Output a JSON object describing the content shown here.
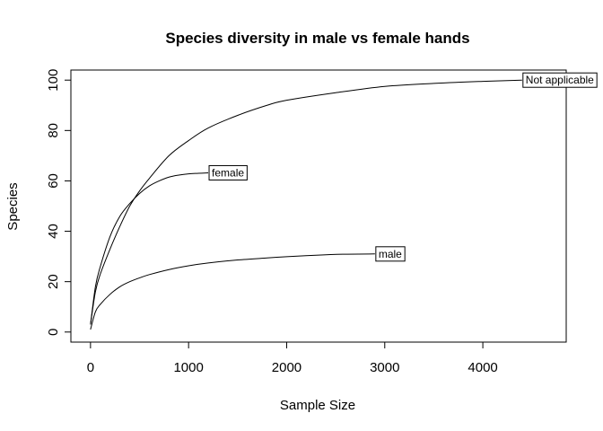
{
  "chart_data": {
    "type": "line",
    "title": "Species diversity in male vs female hands",
    "xlabel": "Sample Size",
    "ylabel": "Species",
    "xlim": [
      -200,
      4850
    ],
    "ylim": [
      -4,
      104
    ],
    "x_ticks": [
      0,
      1000,
      2000,
      3000,
      4000
    ],
    "y_ticks": [
      0,
      20,
      40,
      60,
      80,
      100
    ],
    "grid": false,
    "legend": "none",
    "series": [
      {
        "name": "Not applicable",
        "color": "#000000",
        "x": [
          0,
          50,
          100,
          200,
          300,
          400,
          500,
          600,
          800,
          1000,
          1200,
          1500,
          1800,
          2000,
          2500,
          3000,
          3500,
          4000,
          4400
        ],
        "y": [
          3,
          16,
          23,
          33,
          42,
          50,
          56,
          61,
          70,
          76,
          81,
          86,
          90,
          92,
          95,
          97.5,
          98.7,
          99.5,
          100
        ]
      },
      {
        "name": "female",
        "color": "#000000",
        "x": [
          0,
          50,
          100,
          200,
          300,
          400,
          500,
          600,
          700,
          800,
          900,
          1000,
          1100,
          1200
        ],
        "y": [
          3,
          18,
          26,
          38,
          46,
          51,
          55,
          58,
          60,
          61.5,
          62.3,
          62.8,
          63,
          63.2
        ]
      },
      {
        "name": "male",
        "color": "#000000",
        "x": [
          0,
          50,
          100,
          200,
          300,
          400,
          500,
          600,
          800,
          1000,
          1200,
          1500,
          1800,
          2000,
          2300,
          2600,
          2900
        ],
        "y": [
          1,
          8,
          11,
          15,
          18,
          20,
          21.5,
          22.8,
          24.8,
          26.3,
          27.4,
          28.6,
          29.4,
          29.9,
          30.5,
          30.9,
          31
        ]
      }
    ]
  }
}
